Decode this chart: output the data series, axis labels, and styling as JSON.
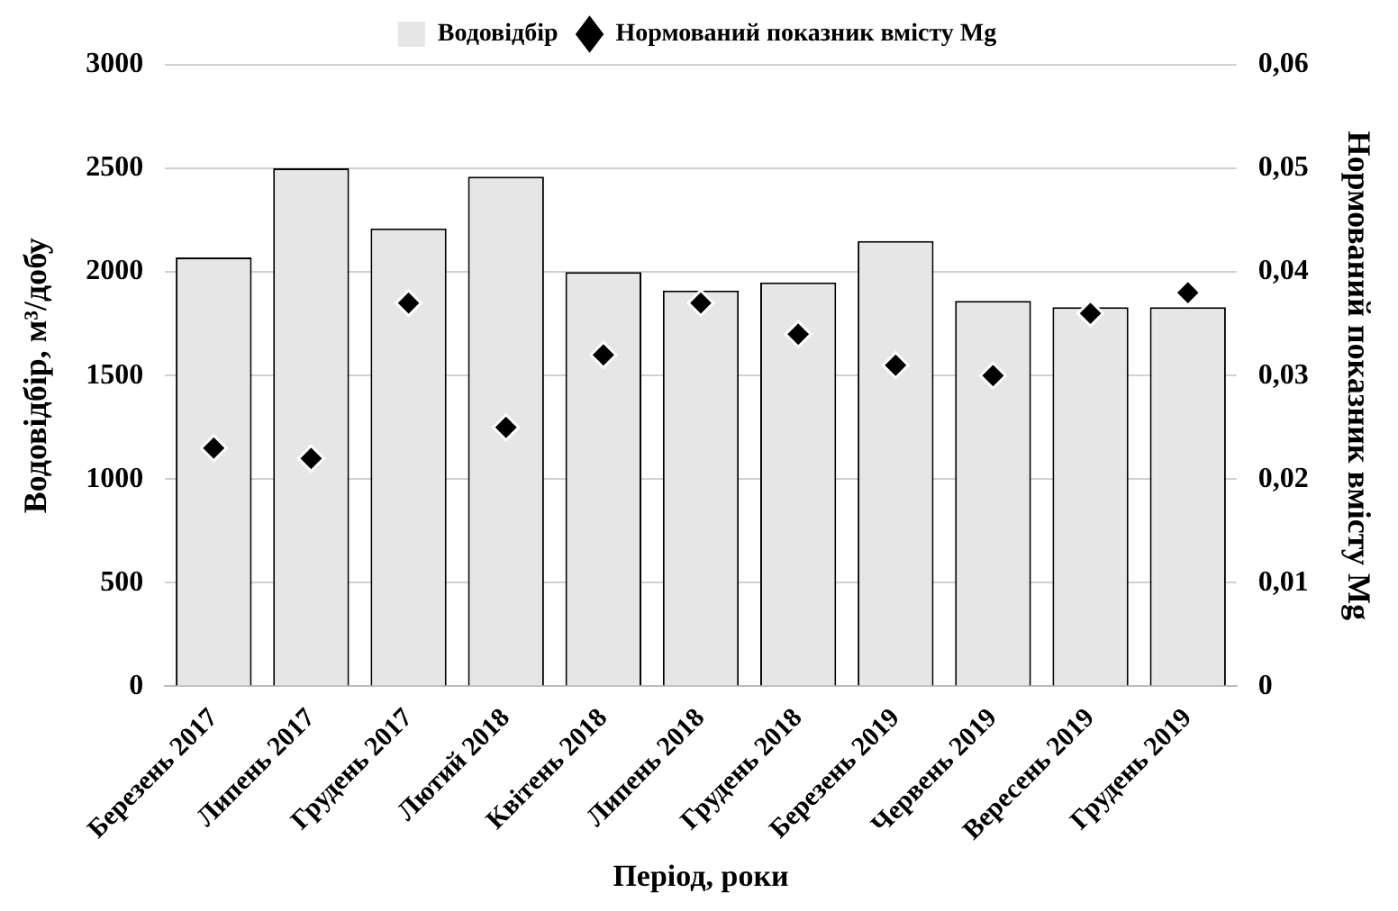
{
  "chart_data": {
    "type": "bar",
    "xlabel": "Період, роки",
    "ylabel": "Водовідбір, м³/добу",
    "y2label": "Нормований показник вмісту Mg",
    "categories": [
      "Березень 2017",
      "Липень 2017",
      "Грудень 2017",
      "Лютий 2018",
      "Квітень 2018",
      "Липень 2018",
      "Грудень 2018",
      "Березень 2019",
      "Червень 2019",
      "Вересень 2019",
      "Грудень 2019"
    ],
    "series": [
      {
        "name": "Водовідбір",
        "color": "#e6e6e6",
        "values": [
          2070,
          2500,
          2210,
          2460,
          2000,
          1910,
          1950,
          2150,
          1860,
          1830,
          1830
        ]
      },
      {
        "name": "Нормований показник вмісту Mg",
        "type": "scatter",
        "axis": "y2",
        "color": "#000000",
        "marker": "diamond",
        "values": [
          0.023,
          0.022,
          0.037,
          0.025,
          0.032,
          0.037,
          0.034,
          0.031,
          0.03,
          0.036,
          0.038
        ]
      }
    ],
    "ylim": [
      0,
      3000
    ],
    "yticks": [
      0,
      500,
      1000,
      1500,
      2000,
      2500,
      3000
    ],
    "y2lim": [
      0,
      0.06
    ],
    "y2ticks": [
      0,
      {
        "value": 0.01,
        "label": "0,01"
      },
      {
        "value": 0.02,
        "label": "0,02"
      },
      {
        "value": 0.03,
        "label": "0,03"
      },
      {
        "value": 0.04,
        "label": "0,04"
      },
      {
        "value": 0.05,
        "label": "0,05"
      },
      {
        "value": 0.06,
        "label": "0,06"
      }
    ],
    "grid": "y",
    "legend": "top"
  }
}
